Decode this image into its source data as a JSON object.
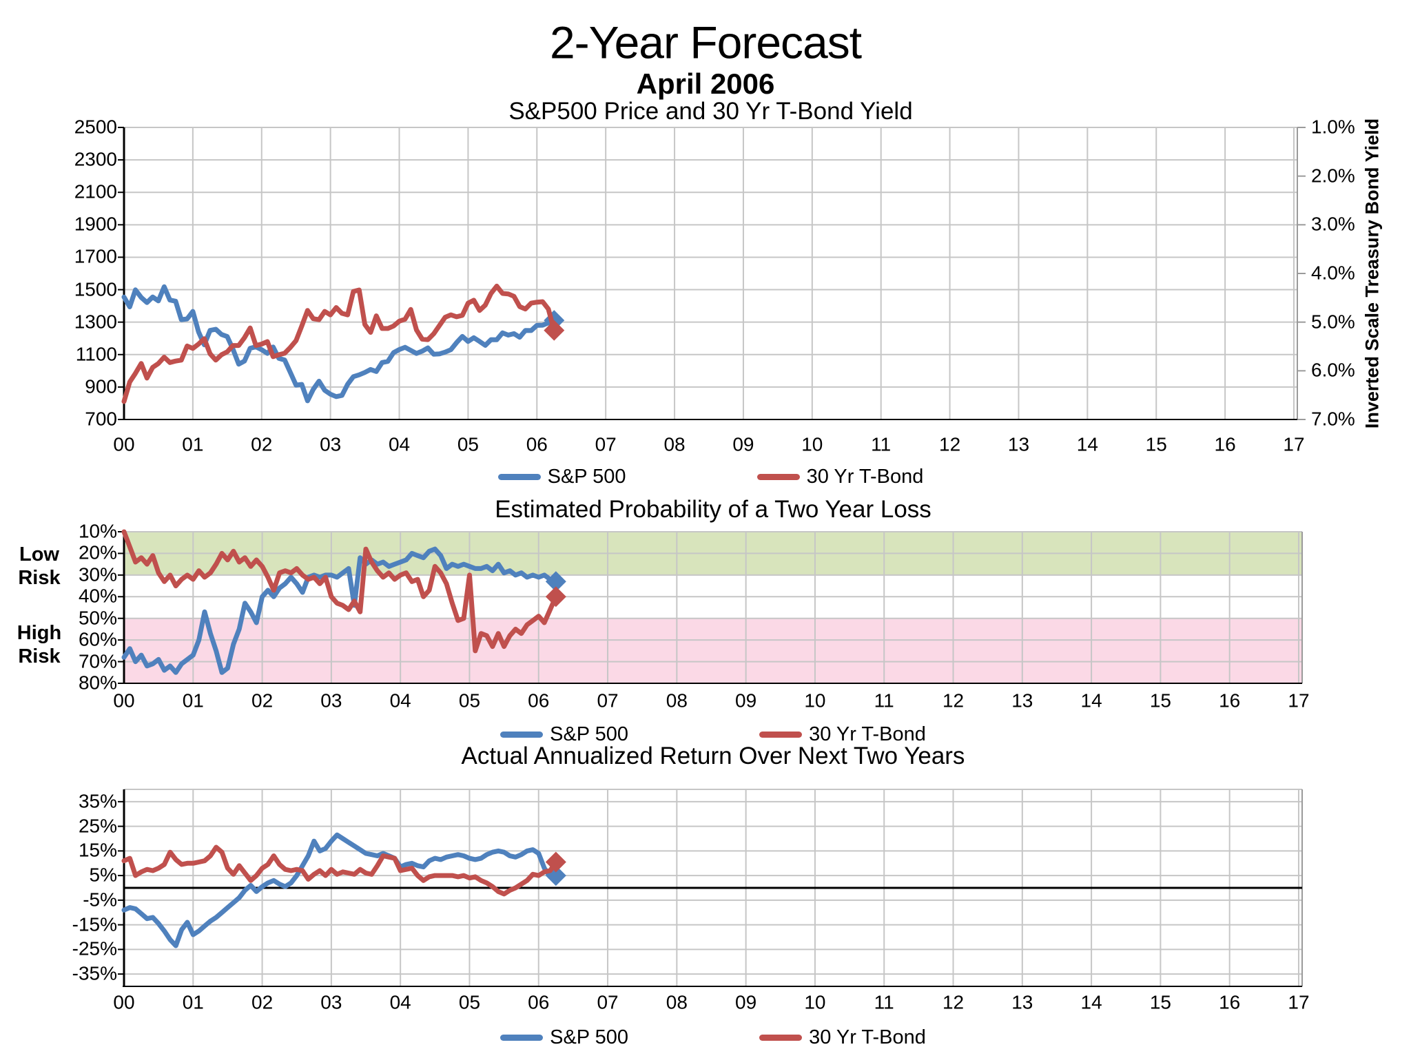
{
  "header": {
    "title": "2-Year Forecast",
    "date": "April 2006"
  },
  "colors": {
    "grid": "#C6C6C6",
    "axis": "#000000",
    "blue": "#4F81BD",
    "red": "#C0504D",
    "low_risk_zone_green": "#D8E4BC",
    "high_risk_zone_pink": "#FBD9E6"
  },
  "chart_data": [
    {
      "id": "price_yield",
      "type": "line",
      "title": "S&P500 Price and 30 Yr T-Bond Yield",
      "x_tick_labels": [
        "00",
        "01",
        "02",
        "03",
        "04",
        "05",
        "06",
        "07",
        "08",
        "09",
        "10",
        "11",
        "12",
        "13",
        "14",
        "15",
        "16",
        "17"
      ],
      "x_range_years": [
        2000,
        2017
      ],
      "data_start_year": 2000,
      "points_per_year": 12,
      "left_axis": {
        "tick_labels": [
          "2500",
          "2300",
          "2100",
          "1900",
          "1700",
          "1500",
          "1300",
          "1100",
          "900",
          "700"
        ],
        "tick_values": [
          2500,
          2300,
          2100,
          1900,
          1700,
          1500,
          1300,
          1100,
          900,
          700
        ],
        "range": [
          2500,
          700
        ]
      },
      "right_axis": {
        "title": "Inverted Scale Treasury Bond Yield",
        "tick_labels": [
          "1.0%",
          "2.0%",
          "3.0%",
          "4.0%",
          "5.0%",
          "6.0%",
          "7.0%"
        ],
        "tick_values": [
          1,
          2,
          3,
          4,
          5,
          6,
          7
        ],
        "range": [
          1,
          7
        ]
      },
      "series": [
        {
          "name": "S&P 500",
          "color": "#4F81BD",
          "axis": "left",
          "marker_end": "diamond",
          "values": [
            1455,
            1394,
            1499,
            1452,
            1421,
            1455,
            1431,
            1518,
            1436,
            1429,
            1315,
            1320,
            1366,
            1240,
            1160,
            1249,
            1256,
            1224,
            1211,
            1134,
            1041,
            1060,
            1139,
            1148,
            1130,
            1107,
            1147,
            1077,
            1067,
            990,
            912,
            916,
            815,
            886,
            936,
            880,
            856,
            841,
            848,
            917,
            964,
            975,
            990,
            1008,
            996,
            1051,
            1058,
            1112,
            1131,
            1145,
            1126,
            1107,
            1121,
            1141,
            1102,
            1104,
            1115,
            1130,
            1174,
            1212,
            1181,
            1204,
            1181,
            1157,
            1192,
            1191,
            1234,
            1220,
            1229,
            1207,
            1249,
            1248,
            1280,
            1281,
            1295,
            1311
          ]
        },
        {
          "name": "30 Yr T-Bond",
          "color": "#C0504D",
          "axis": "right",
          "marker_end": "diamond",
          "values": [
            6.63,
            6.23,
            6.05,
            5.85,
            6.15,
            5.93,
            5.85,
            5.72,
            5.83,
            5.8,
            5.78,
            5.49,
            5.54,
            5.45,
            5.34,
            5.65,
            5.78,
            5.67,
            5.61,
            5.48,
            5.48,
            5.32,
            5.12,
            5.48,
            5.45,
            5.4,
            5.71,
            5.67,
            5.64,
            5.52,
            5.38,
            5.08,
            4.76,
            4.93,
            4.95,
            4.78,
            4.85,
            4.7,
            4.82,
            4.85,
            4.37,
            4.34,
            5.05,
            5.21,
            4.87,
            5.13,
            5.13,
            5.08,
            4.98,
            4.94,
            4.74,
            5.16,
            5.35,
            5.36,
            5.24,
            5.07,
            4.9,
            4.85,
            4.89,
            4.86,
            4.61,
            4.55,
            4.76,
            4.65,
            4.41,
            4.26,
            4.41,
            4.42,
            4.47,
            4.68,
            4.73,
            4.61,
            4.59,
            4.58,
            4.73,
            5.17
          ]
        }
      ],
      "legend_items": [
        "S&P 500",
        "30 Yr T-Bond"
      ]
    },
    {
      "id": "loss_probability",
      "type": "line",
      "title": "Estimated Probability of a Two Year Loss",
      "x_tick_labels": [
        "00",
        "01",
        "02",
        "03",
        "04",
        "05",
        "06",
        "07",
        "08",
        "09",
        "10",
        "11",
        "12",
        "13",
        "14",
        "15",
        "16",
        "17"
      ],
      "x_range_years": [
        2000,
        2017
      ],
      "data_start_year": 2000,
      "points_per_year": 12,
      "y_axis": {
        "tick_labels": [
          "10%",
          "20%",
          "30%",
          "40%",
          "50%",
          "60%",
          "70%",
          "80%"
        ],
        "tick_values": [
          10,
          20,
          30,
          40,
          50,
          60,
          70,
          80
        ],
        "range": [
          10,
          80
        ]
      },
      "zones": [
        {
          "label_lines": [
            "Low",
            "Risk"
          ],
          "color": "#D8E4BC",
          "from": 10,
          "to": 30
        },
        {
          "label_lines": [
            "High",
            "Risk"
          ],
          "color": "#FBD9E6",
          "from": 50,
          "to": 80
        }
      ],
      "series": [
        {
          "name": "S&P 500",
          "color": "#4F81BD",
          "axis": "left",
          "marker_end": "diamond",
          "values": [
            68,
            64,
            70,
            67,
            72,
            71,
            69,
            74,
            72,
            75,
            71,
            69,
            67,
            60,
            47,
            57,
            65,
            75,
            73,
            62,
            55,
            43,
            47,
            52,
            40,
            37,
            40,
            36,
            34,
            31,
            34,
            38,
            31,
            30,
            31,
            30,
            30,
            31,
            29,
            27,
            44,
            22,
            25,
            23,
            25,
            24,
            26,
            25,
            24,
            23,
            20,
            21,
            22,
            19,
            18,
            21,
            27,
            25,
            26,
            25,
            26,
            27,
            27,
            26,
            28,
            25,
            29,
            28,
            30,
            29,
            31,
            30,
            31,
            30,
            32,
            33
          ]
        },
        {
          "name": "30 Yr T-Bond",
          "color": "#C0504D",
          "axis": "left",
          "marker_end": "diamond",
          "values": [
            10,
            17,
            24,
            22,
            25,
            21,
            29,
            33,
            30,
            35,
            32,
            30,
            32,
            28,
            31,
            29,
            25,
            20,
            23,
            19,
            24,
            22,
            26,
            23,
            26,
            31,
            37,
            29,
            28,
            29,
            27,
            30,
            32,
            31,
            34,
            31,
            40,
            43,
            44,
            46,
            42,
            47,
            18,
            24,
            28,
            31,
            29,
            32,
            30,
            29,
            33,
            32,
            40,
            37,
            26,
            29,
            34,
            43,
            51,
            50,
            30,
            65,
            57,
            58,
            63,
            57,
            63,
            58,
            55,
            57,
            53,
            51,
            49,
            52,
            46,
            40
          ]
        }
      ],
      "legend_items": [
        "S&P 500",
        "30 Yr T-Bond"
      ]
    },
    {
      "id": "annualized_return",
      "type": "line",
      "title": "Actual Annualized Return Over Next Two Years",
      "x_tick_labels": [
        "00",
        "01",
        "02",
        "03",
        "04",
        "05",
        "06",
        "07",
        "08",
        "09",
        "10",
        "11",
        "12",
        "13",
        "14",
        "15",
        "16",
        "17"
      ],
      "x_range_years": [
        2000,
        2017
      ],
      "data_start_year": 2000,
      "points_per_year": 12,
      "zero_line": true,
      "y_axis": {
        "tick_labels": [
          "35%",
          "25%",
          "15%",
          "5%",
          "-5%",
          "-15%",
          "-25%",
          "-35%"
        ],
        "tick_values": [
          35,
          25,
          15,
          5,
          -5,
          -15,
          -25,
          -35
        ],
        "range": [
          40,
          -40
        ]
      },
      "series": [
        {
          "name": "S&P 500",
          "color": "#4F81BD",
          "axis": "left",
          "marker_end": "diamond",
          "values": [
            -9,
            -8,
            -8.5,
            -10.5,
            -12.5,
            -12,
            -14.5,
            -17.5,
            -21,
            -23.5,
            -17,
            -14,
            -19,
            -17.5,
            -15.5,
            -13.5,
            -12,
            -10,
            -8,
            -6,
            -4,
            -1,
            1,
            -1.5,
            0.5,
            2,
            3,
            1.5,
            0.5,
            2,
            5,
            9,
            13,
            19,
            15,
            16,
            19,
            21.5,
            20,
            18.5,
            17,
            15.5,
            14,
            13.5,
            13,
            14,
            13,
            12,
            8.5,
            9.5,
            10,
            9,
            8.5,
            11,
            12,
            11.5,
            12.5,
            13,
            13.5,
            13,
            12,
            11.5,
            12,
            13.5,
            14.5,
            15,
            14.5,
            13,
            12.5,
            13.5,
            15,
            15.5,
            14,
            8,
            4.5,
            5
          ]
        },
        {
          "name": "30 Yr T-Bond",
          "color": "#C0504D",
          "axis": "left",
          "marker_end": "diamond",
          "values": [
            11,
            12,
            5,
            6.5,
            7.5,
            7,
            8,
            9.5,
            14.5,
            11.5,
            9.5,
            10,
            10,
            10.5,
            11,
            13,
            16.5,
            14.5,
            8,
            5.5,
            9,
            6,
            3,
            5,
            8,
            9.5,
            13,
            9.5,
            7.5,
            7,
            7.5,
            7,
            3.5,
            5.5,
            7,
            5,
            7.5,
            5.5,
            6.5,
            6,
            5.5,
            7.5,
            6,
            5.5,
            9,
            13,
            12.5,
            12,
            7,
            7.5,
            8,
            5,
            3,
            4.5,
            5,
            5,
            5,
            5,
            4.5,
            5,
            4,
            4.5,
            3,
            2,
            0.5,
            -1.5,
            -2.5,
            -1,
            0,
            1.5,
            3,
            5.5,
            5,
            6.5,
            7,
            10.5
          ]
        }
      ],
      "legend_items": [
        "S&P 500",
        "30 Yr T-Bond"
      ]
    }
  ]
}
